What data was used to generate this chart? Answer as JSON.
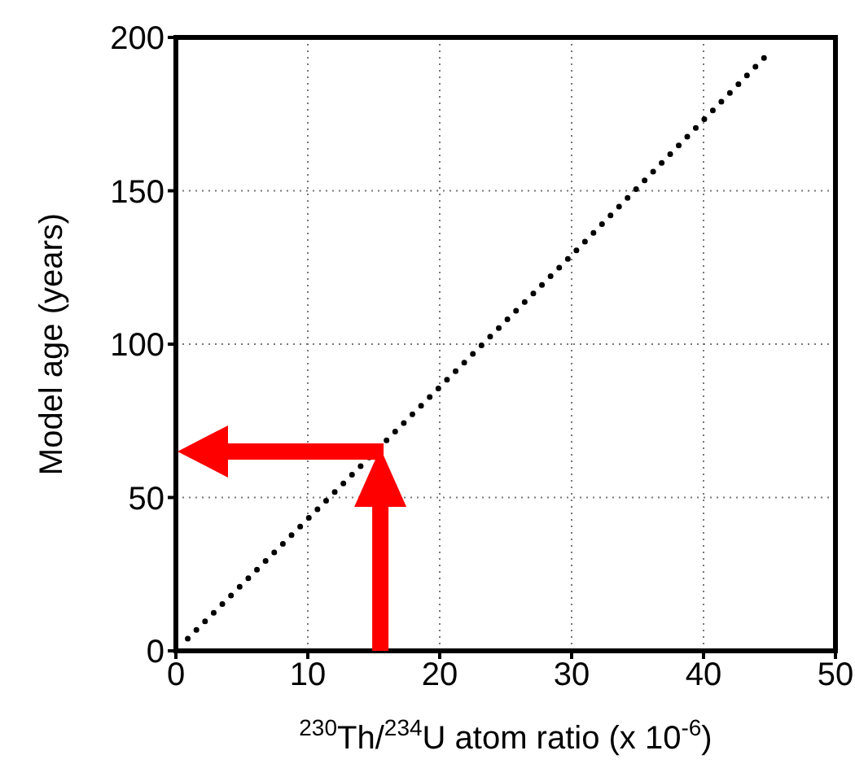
{
  "chart_data": {
    "type": "line",
    "xlabel": "$^{230}$Th/$^{234}$U atom ratio (x 10$^{-6}$)",
    "ylabel": "Model age (years)",
    "series": [
      {
        "color": "#000000",
        "x": [
          0.9,
          10,
          20,
          30,
          45.2
        ],
        "values": [
          4,
          43,
          86,
          129,
          196
        ]
      }
    ],
    "xlim": [
      0,
      50
    ],
    "xticks": [
      0,
      10,
      20,
      30,
      40,
      50
    ],
    "ylim": [
      0,
      200
    ],
    "yticks": [
      0,
      50,
      100,
      150,
      200
    ],
    "grid": true,
    "line_style": "dotted",
    "marker": "none"
  }
}
